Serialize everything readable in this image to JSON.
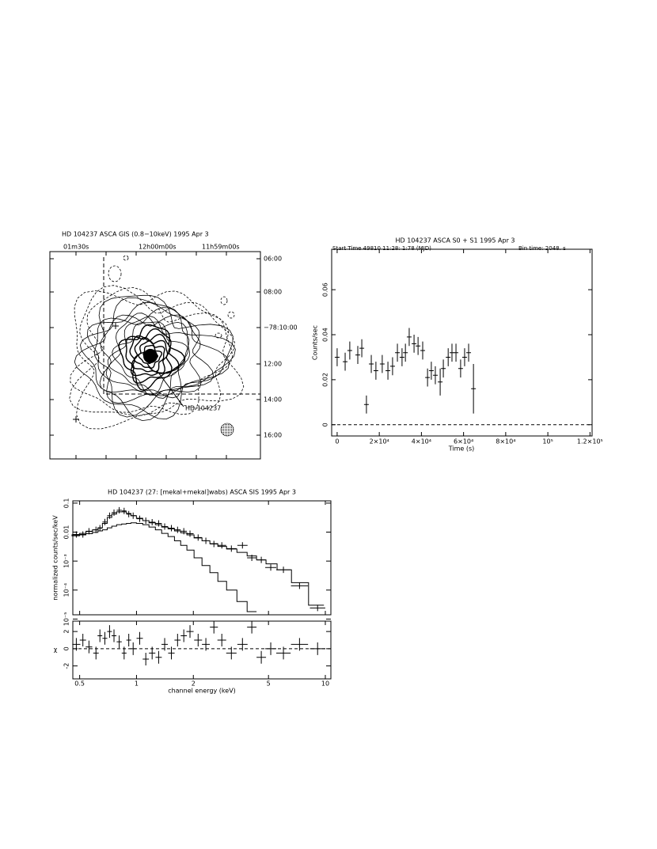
{
  "chart_data": [
    {
      "type": "contour",
      "title": "HD 104237    ASCA GIS (0.8−10keV)    1995 Apr  3",
      "top_labels": [
        "01m30s",
        "12h00m00s",
        "11h59m00s"
      ],
      "right_labels": [
        "06:00",
        "08:00",
        "−78:10:00",
        "12:00",
        "14:00",
        "16:00"
      ],
      "annotation": "HD 104237"
    },
    {
      "type": "errorbar",
      "title": "HD 104237    ASCA    S0 + S1    1995 Apr  3",
      "subtitle": "Start Time 49810 11:28: 1:78 (MJD)",
      "bin_time": "Bin time:    2048.    s",
      "xlabel": "Time (s)",
      "ylabel": "Counts/sec",
      "x": [
        0,
        3800,
        6000,
        9800,
        11700,
        13900,
        16200,
        18400,
        21400,
        24100,
        26300,
        28600,
        30800,
        32400,
        34200,
        36500,
        38400,
        40600,
        42900,
        44700,
        46600,
        48900,
        50400,
        52700,
        54500,
        56400,
        58600,
        60500,
        62400,
        64700
      ],
      "values": [
        0.03,
        0.028,
        0.033,
        0.031,
        0.034,
        0.009,
        0.027,
        0.024,
        0.027,
        0.024,
        0.026,
        0.032,
        0.03,
        0.032,
        0.039,
        0.036,
        0.035,
        0.033,
        0.021,
        0.024,
        0.022,
        0.019,
        0.025,
        0.03,
        0.032,
        0.032,
        0.025,
        0.03,
        0.032,
        0.016
      ],
      "yerr": [
        0.004,
        0.004,
        0.004,
        0.004,
        0.004,
        0.004,
        0.004,
        0.004,
        0.004,
        0.004,
        0.004,
        0.004,
        0.004,
        0.004,
        0.004,
        0.004,
        0.004,
        0.004,
        0.004,
        0.004,
        0.004,
        0.006,
        0.004,
        0.004,
        0.004,
        0.004,
        0.004,
        0.004,
        0.004,
        0.011
      ],
      "xlim": [
        -2600,
        121000
      ],
      "ylim": [
        -0.005,
        0.078
      ],
      "xticks": [
        0,
        {
          "value": 20000,
          "label": "2×10⁴"
        },
        {
          "value": 40000,
          "label": "4×10⁴"
        },
        {
          "value": 60000,
          "label": "6×10⁴"
        },
        {
          "value": 80000,
          "label": "8×10⁴"
        },
        {
          "value": 100000,
          "label": "10⁵"
        },
        {
          "value": 120000,
          "label": "1.2×10⁵"
        }
      ],
      "yticks": [
        0,
        0.02,
        0.04,
        0.06
      ],
      "color": "#000000"
    },
    {
      "type": "spectrum",
      "title": "HD 104237   (27: [mekal+mekal]wabs)    ASCA   SIS    1995 Apr  3",
      "xlabel": "channel energy (keV)",
      "ylabel": "normalized counts/sec/keV",
      "residual_label": "χ",
      "x": [
        0.48,
        0.52,
        0.56,
        0.61,
        0.64,
        0.68,
        0.72,
        0.76,
        0.81,
        0.86,
        0.91,
        0.96,
        1.04,
        1.12,
        1.21,
        1.31,
        1.41,
        1.53,
        1.65,
        1.78,
        1.92,
        2.12,
        2.33,
        2.57,
        2.83,
        3.18,
        3.64,
        4.08,
        4.58,
        5.14,
        6.0,
        7.3,
        9.1
      ],
      "values": [
        0.0083,
        0.0083,
        0.0107,
        0.012,
        0.0137,
        0.0224,
        0.037,
        0.047,
        0.057,
        0.054,
        0.042,
        0.037,
        0.029,
        0.025,
        0.022,
        0.02,
        0.0155,
        0.0137,
        0.012,
        0.0107,
        0.0088,
        0.0065,
        0.005,
        0.0039,
        0.0035,
        0.0027,
        0.0035,
        0.0013,
        0.0011,
        0.0006,
        0.0005,
        0.00014,
        2.4e-05
      ],
      "model": [
        0.008,
        0.009,
        0.0105,
        0.012,
        0.014,
        0.02,
        0.032,
        0.042,
        0.05,
        0.05,
        0.044,
        0.037,
        0.03,
        0.025,
        0.021,
        0.018,
        0.015,
        0.013,
        0.011,
        0.0095,
        0.008,
        0.0063,
        0.005,
        0.004,
        0.0032,
        0.0026,
        0.002,
        0.0015,
        0.0011,
        0.0008,
        0.0005,
        0.00018,
        3e-05
      ],
      "component": [
        0.0075,
        0.008,
        0.0088,
        0.0098,
        0.011,
        0.012,
        0.014,
        0.016,
        0.018,
        0.019,
        0.02,
        0.021,
        0.02,
        0.018,
        0.015,
        0.012,
        0.009,
        0.007,
        0.005,
        0.0035,
        0.0024,
        0.0013,
        0.0007,
        0.0004,
        0.0002,
        0.0001,
        4e-05,
        1.8e-05,
        null,
        null,
        null,
        null,
        null
      ],
      "residuals": [
        0.5,
        1,
        0.2,
        -0.5,
        1.5,
        1.2,
        2,
        1.5,
        0.8,
        -0.5,
        1,
        0,
        1.2,
        -1.2,
        -0.5,
        -1,
        0.5,
        -0.5,
        1,
        1.5,
        2,
        1,
        0.5,
        2.5,
        1,
        -0.5,
        0.5,
        2.5,
        -1,
        0,
        -0.5,
        0.5,
        0
      ],
      "xlim": [
        0.46,
        10.7
      ],
      "ylim": [
        1.4e-05,
        0.12
      ],
      "xticks": [
        0.5,
        1,
        2,
        5,
        10
      ],
      "yticks": [
        {
          "value": 1e-05,
          "label": "10⁻⁵"
        },
        {
          "value": 0.0001,
          "label": "10⁻⁴"
        },
        {
          "value": 0.001,
          "label": "10⁻³"
        },
        0.01,
        0.1
      ],
      "residual_ylim": [
        -3.5,
        3.2
      ],
      "residual_yticks": [
        -2,
        0,
        2
      ],
      "xlog": true,
      "ylog": true,
      "color": "#000000"
    }
  ]
}
